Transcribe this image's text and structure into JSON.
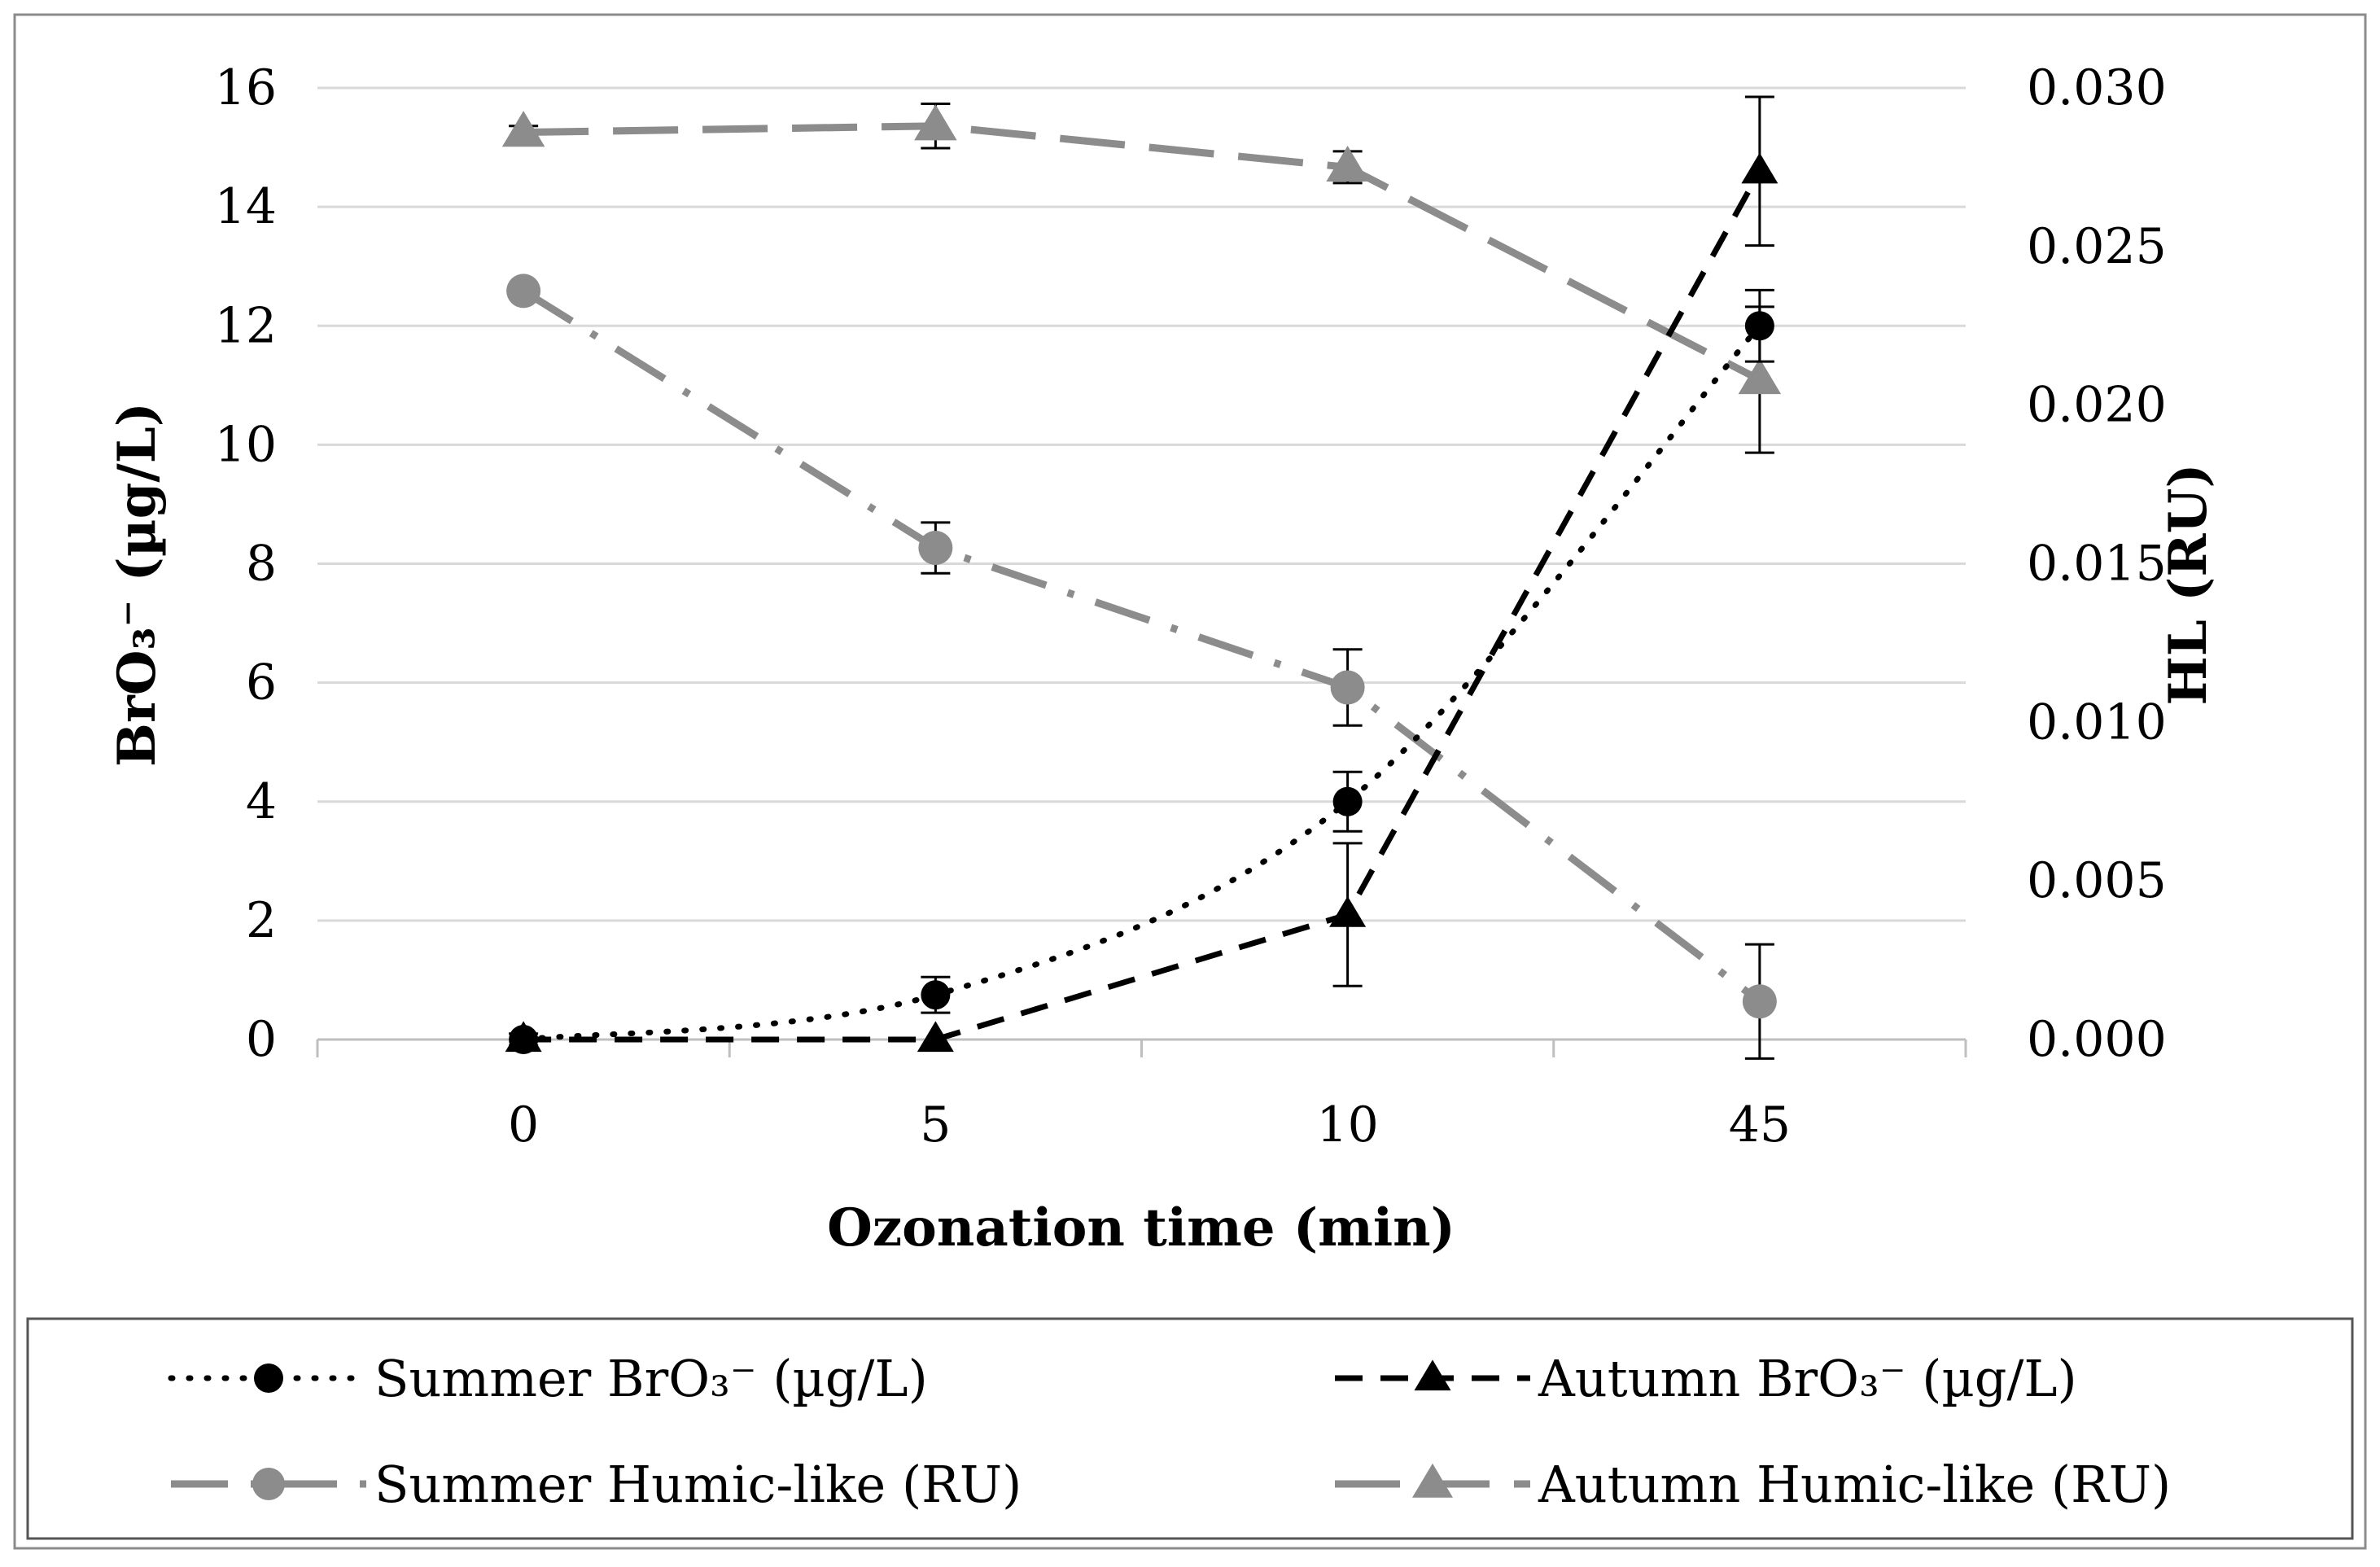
{
  "chart_data": {
    "type": "line",
    "title": "",
    "categories": [
      "0",
      "5",
      "10",
      "45"
    ],
    "xlabel": "Ozonation time (min)",
    "ylabel": "BrO₃⁻ (µg/L)",
    "y2label": "HL (RU)",
    "ylim": [
      0,
      16
    ],
    "y2lim": [
      0,
      0.03
    ],
    "yticks": [
      "0",
      "2",
      "4",
      "6",
      "8",
      "10",
      "12",
      "14",
      "16"
    ],
    "y2ticks": [
      "0.000",
      "0.005",
      "0.010",
      "0.015",
      "0.020",
      "0.025",
      "0.030"
    ],
    "grid": true,
    "legend_position": "bottom",
    "series": [
      {
        "name": "Summer BrO₃⁻ (µg/L)",
        "axis": "left",
        "values": [
          0,
          0.75,
          4.0,
          12.0
        ],
        "errors": [
          0.1,
          0.3,
          0.5,
          0.6
        ],
        "marker": "circle",
        "line": "dotted",
        "smooth": true,
        "color": "#000000"
      },
      {
        "name": "Autumn BrO₃⁻ (µg/L)",
        "axis": "left",
        "values": [
          0,
          0,
          2.1,
          14.6
        ],
        "errors": [
          0,
          0,
          1.2,
          1.25
        ],
        "marker": "triangle",
        "line": "dashed",
        "smooth": false,
        "color": "#000000"
      },
      {
        "name": "Summer Humic-like (RU)",
        "axis": "right",
        "values": [
          0.0236,
          0.0155,
          0.0111,
          0.0012
        ],
        "errors": [
          0.0001,
          0.0008,
          0.0012,
          0.0018
        ],
        "marker": "circle",
        "line": "dashdot",
        "smooth": false,
        "color": "#8c8c8c"
      },
      {
        "name": "Autumn Humic-like (RU)",
        "axis": "right",
        "values": [
          0.0286,
          0.0288,
          0.0275,
          0.0208
        ],
        "errors": [
          0.0002,
          0.0007,
          0.0005,
          0.0023
        ],
        "marker": "triangle",
        "line": "longdash",
        "smooth": false,
        "color": "#8c8c8c"
      }
    ]
  }
}
